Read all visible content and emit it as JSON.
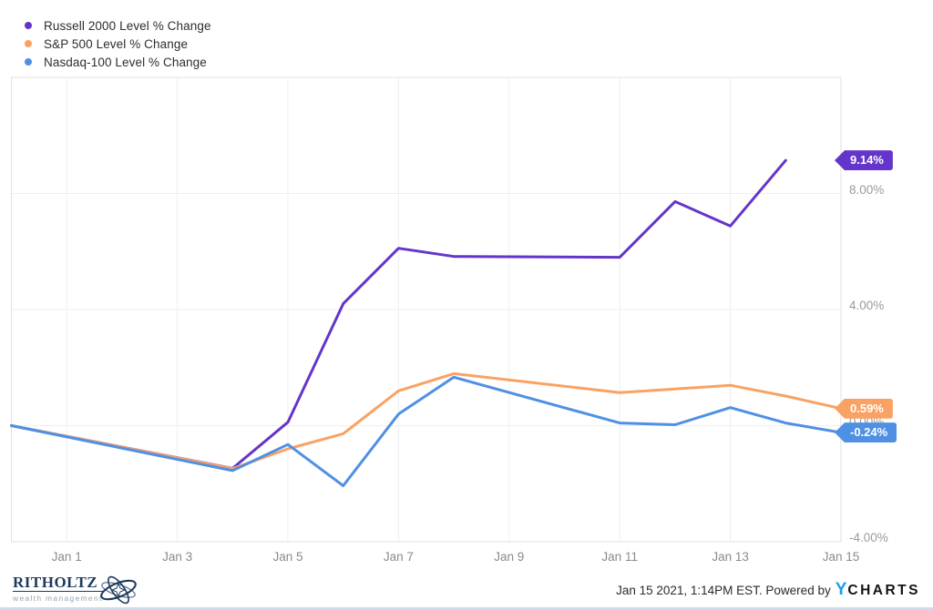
{
  "chart_data": {
    "type": "line",
    "title": "",
    "legend_position": "top-left",
    "grid": true,
    "x_note": "day 0 = Dec 31 2020 baseline; points on trading days only; straight segments span weekends",
    "x_axis": {
      "range_days": [
        0,
        15
      ],
      "ticks": [
        {
          "day": 1,
          "label": "Jan 1"
        },
        {
          "day": 3,
          "label": "Jan 3"
        },
        {
          "day": 5,
          "label": "Jan 5"
        },
        {
          "day": 7,
          "label": "Jan 7"
        },
        {
          "day": 9,
          "label": "Jan 9"
        },
        {
          "day": 11,
          "label": "Jan 11"
        },
        {
          "day": 13,
          "label": "Jan 13"
        },
        {
          "day": 15,
          "label": "Jan 15"
        }
      ]
    },
    "y_axis": {
      "unit": "%",
      "range": [
        -4,
        12
      ],
      "ticks": [
        {
          "value": 8,
          "label": "8.00%"
        },
        {
          "value": 4,
          "label": "4.00%"
        },
        {
          "value": 0,
          "label": "0.00%"
        },
        {
          "value": -4,
          "label": "-4.00%"
        }
      ]
    },
    "series": [
      {
        "name": "Russell 2000 Level % Change",
        "color": "#6435ca",
        "end_badge": "9.14%",
        "end_value": 9.14,
        "points": [
          [
            0,
            0
          ],
          [
            4,
            -1.47
          ],
          [
            5,
            0.12
          ],
          [
            6,
            4.2
          ],
          [
            7,
            6.11
          ],
          [
            8,
            5.83
          ],
          [
            11,
            5.8
          ],
          [
            12,
            7.72
          ],
          [
            13,
            6.88
          ],
          [
            14,
            9.14
          ]
        ]
      },
      {
        "name": "S&P 500 Level % Change",
        "color": "#f9a263",
        "end_badge": "0.59%",
        "end_value": 0.59,
        "points": [
          [
            0,
            0
          ],
          [
            4,
            -1.48
          ],
          [
            5,
            -0.8
          ],
          [
            6,
            -0.28
          ],
          [
            7,
            1.2
          ],
          [
            8,
            1.79
          ],
          [
            11,
            1.14
          ],
          [
            12,
            1.26
          ],
          [
            13,
            1.39
          ],
          [
            14,
            1.02
          ],
          [
            15,
            0.59
          ]
        ]
      },
      {
        "name": "Nasdaq-100 Level % Change",
        "color": "#4f90e4",
        "end_badge": "-0.24%",
        "end_value": -0.24,
        "points": [
          [
            0,
            0
          ],
          [
            4,
            -1.55
          ],
          [
            5,
            -0.65
          ],
          [
            6,
            -2.07
          ],
          [
            7,
            0.4
          ],
          [
            8,
            1.67
          ],
          [
            11,
            0.09
          ],
          [
            12,
            0.03
          ],
          [
            13,
            0.62
          ],
          [
            14,
            0.09
          ],
          [
            15,
            -0.24
          ]
        ]
      }
    ]
  },
  "footer": {
    "brand": {
      "title": "RITHOLTZ",
      "subtitle": "wealth management"
    },
    "attribution": "Jan 15 2021, 1:14PM EST. Powered by",
    "logo": {
      "y": "Y",
      "charts": "CHARTS"
    }
  }
}
